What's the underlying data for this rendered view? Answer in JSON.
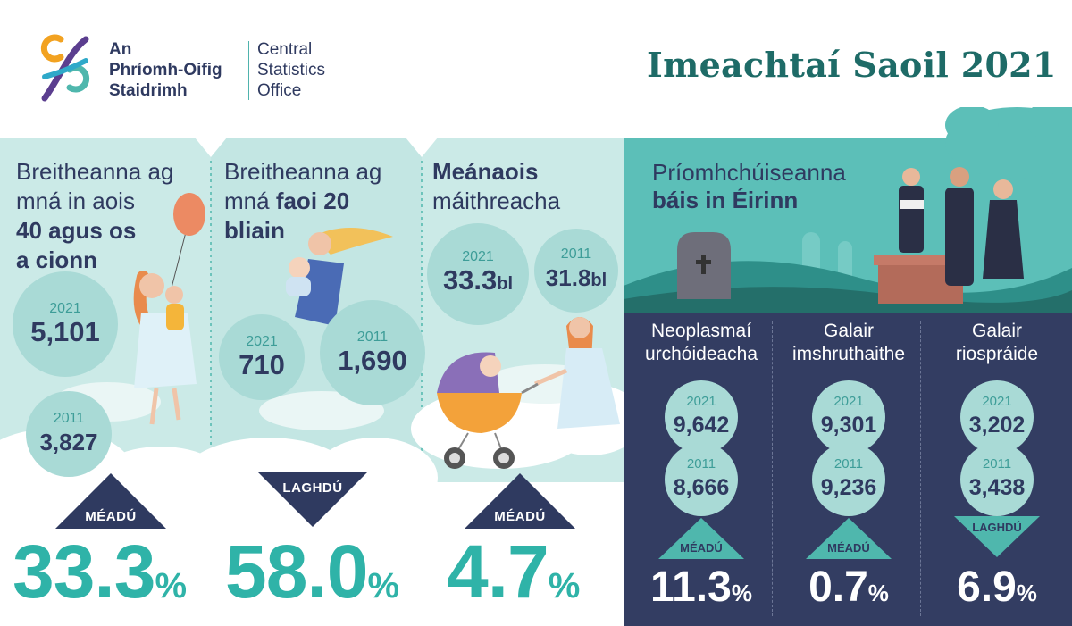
{
  "header": {
    "org_ga_line1": "An",
    "org_ga_line2": "Phríomh-Oifig",
    "org_ga_line3": "Staidrimh",
    "org_en_line1": "Central",
    "org_en_line2": "Statistics",
    "org_en_line3": "Office",
    "title": "Imeachtaí Saoil 2021"
  },
  "panel1": {
    "line1": "Breitheanna ag",
    "line2": "mná in aois",
    "line3": "40 agus os",
    "line4": "a cionn",
    "year_a": "2021",
    "value_a": "5,101",
    "year_b": "2011",
    "value_b": "3,827",
    "trend": "MÉADÚ",
    "pct": "33.3",
    "pct_sign": "%"
  },
  "panel2": {
    "line1": "Breitheanna ag",
    "line2_plain": "mná ",
    "line2_bold": "faoi 20",
    "line3": "bliain",
    "year_a": "2021",
    "value_a": "710",
    "year_b": "2011",
    "value_b": "1,690",
    "trend": "LAGHDÚ",
    "pct": "58.0",
    "pct_sign": "%"
  },
  "panel3": {
    "line1": "Meánaois",
    "line2": "máithreacha",
    "year_a": "2021",
    "value_a": "33.3",
    "unit_a": "bl",
    "year_b": "2011",
    "value_b": "31.8",
    "unit_b": "bl",
    "trend": "MÉADÚ",
    "pct": "4.7",
    "pct_sign": "%"
  },
  "panel4": {
    "title_line1": "Príomhchúiseanna",
    "title_line2": "báis in Éirinn",
    "columns": [
      {
        "title1": "Neoplasmaí",
        "title2": "urchóideacha",
        "year_a": "2021",
        "value_a": "9,642",
        "year_b": "2011",
        "value_b": "8,666",
        "trend": "MÉADÚ",
        "pct": "11.3",
        "pct_sign": "%"
      },
      {
        "title1": "Galair",
        "title2": "imshruthaithe",
        "year_a": "2021",
        "value_a": "9,301",
        "year_b": "2011",
        "value_b": "9,236",
        "trend": "MÉADÚ",
        "pct": "0.7",
        "pct_sign": "%"
      },
      {
        "title1": "Galair",
        "title2": "riospráide",
        "year_a": "2021",
        "value_a": "3,202",
        "year_b": "2011",
        "value_b": "3,438",
        "trend": "LAGHDÚ",
        "pct": "6.9",
        "pct_sign": "%"
      }
    ]
  },
  "colors": {
    "navy": "#2f3a60",
    "teal": "#2fb3a8",
    "light_teal": "#a9dad6",
    "panel_bg": "#c9e9e6",
    "dark_bg": "#333d62"
  }
}
